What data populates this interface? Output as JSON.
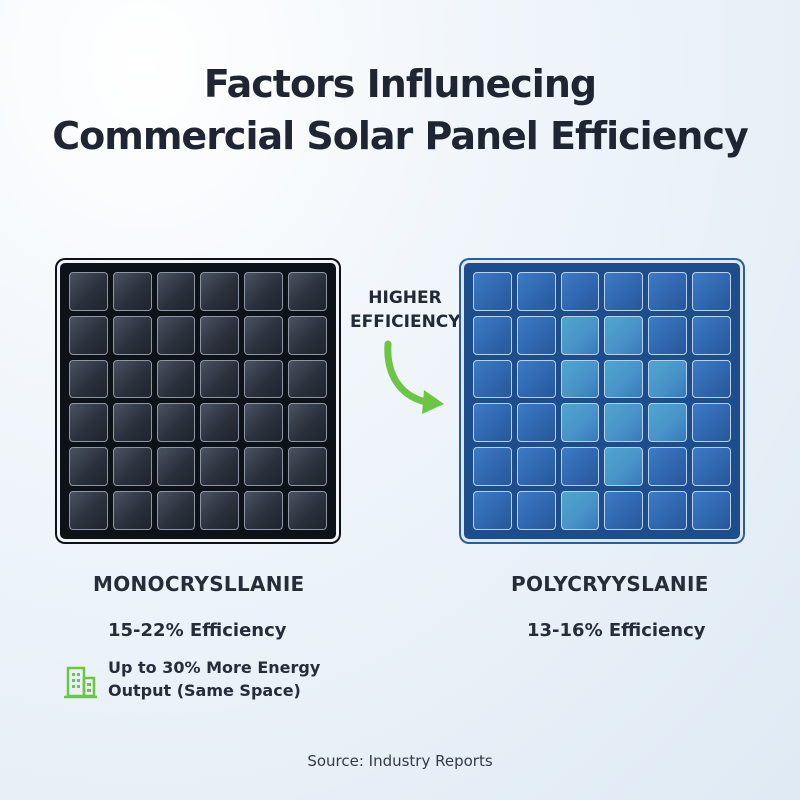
{
  "title": {
    "line1": "Factors Influnecing",
    "line2": "Commercial Solar Panel Efficiency"
  },
  "arrow": {
    "line1": "HIGHER",
    "line2": "EFFICIENCY",
    "icon": "curved-arrow-icon",
    "color": "#6cc644"
  },
  "panels": {
    "mono": {
      "name": "MONOCRYSLLANIE",
      "efficiency": "15-22% Efficiency",
      "note_line1": "Up to 30% More Energy",
      "note_line2": "Output (Same Space)",
      "note_icon": "building-icon",
      "color": "#0d1118"
    },
    "poly": {
      "name": "POLYCRYYSLANIE",
      "efficiency": "13-16% Efficiency",
      "color": "#2f65ad"
    }
  },
  "source": "Source: Industry Reports"
}
